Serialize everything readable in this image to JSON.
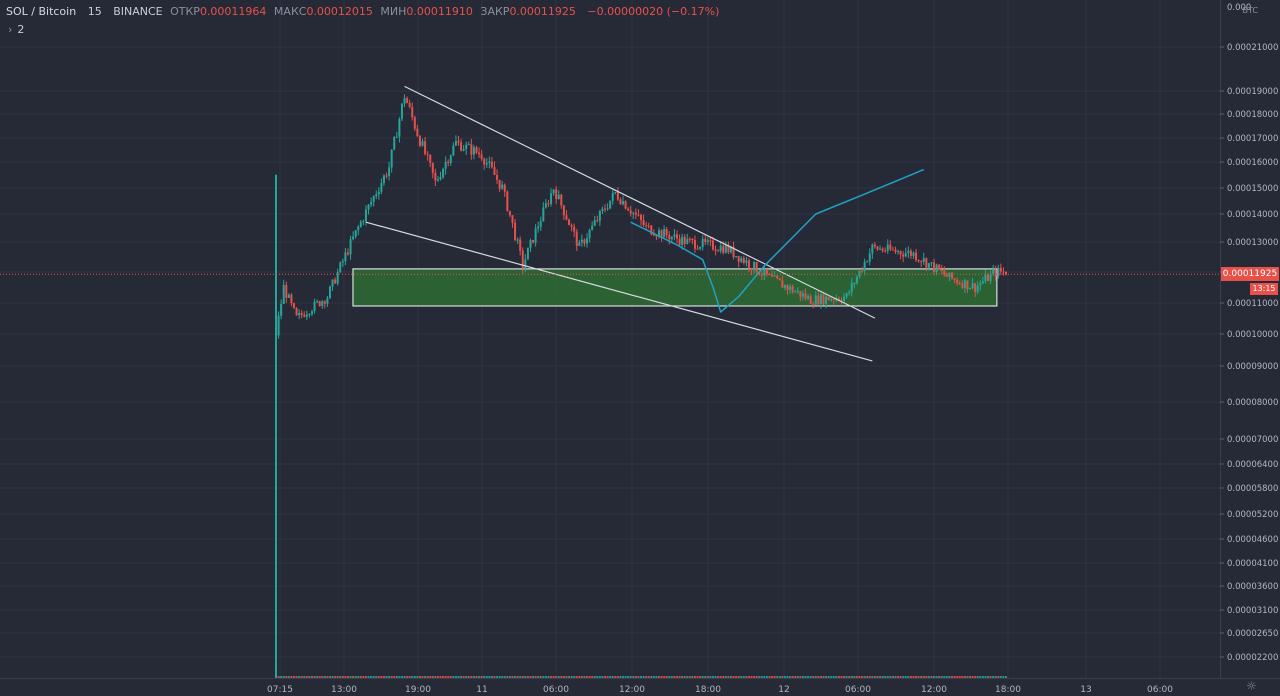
{
  "header": {
    "symbol": "SOL / Bitcoin",
    "interval": "15",
    "exchange": "BINANCE",
    "open_label": "ОТКР",
    "open_value": "0.00011964",
    "high_label": "МАКС",
    "high_value": "0.00012015",
    "low_label": "МИН",
    "low_value": "0.00011910",
    "close_label": "ЗАКР",
    "close_value": "0.00011925",
    "change_value": "−0.00000020 (−0.17%)",
    "indicators_count": "2"
  },
  "axis": {
    "unit_label": "BTC",
    "current_price_label": "0.00011925",
    "countdown_label": "13:15"
  },
  "colors": {
    "background": "#262a37",
    "up": "#26a69a",
    "down": "#e8504a",
    "zone_fill": "#2e6b32",
    "zone_border": "#d9dde0",
    "trendline": "#d6d9e0",
    "projection": "#1fa2c4",
    "grid": "#2f3443"
  },
  "chart_data": {
    "type": "candlestick",
    "title": "SOL / Bitcoin · 15 · BINANCE",
    "y_scale": "log",
    "y_ticks": [
      "0.00021000",
      "0.00019000",
      "0.00018000",
      "0.00017000",
      "0.00016000",
      "0.00015000",
      "0.00014000",
      "0.00013000",
      "0.00012000",
      "0.00011000",
      "0.00010000",
      "0.00009000",
      "0.00008000",
      "0.00007000",
      "0.00006400",
      "0.00005800",
      "0.00005200",
      "0.00004600",
      "0.00004100",
      "0.00003600",
      "0.00003100",
      "0.00002650",
      "0.00002200"
    ],
    "x_ticks": [
      "07:15",
      "13:00",
      "19:00",
      "11",
      "06:00",
      "12:00",
      "18:00",
      "12",
      "06:00",
      "12:00",
      "18:00",
      "13",
      "06:00"
    ],
    "current_price": 0.00011925,
    "price_path": [
      [
        0,
        0.0001
      ],
      [
        3,
        0.000115
      ],
      [
        8,
        0.000105
      ],
      [
        20,
        0.000112
      ],
      [
        32,
        0.000135
      ],
      [
        44,
        0.000158
      ],
      [
        50,
        0.000188
      ],
      [
        55,
        0.000172
      ],
      [
        62,
        0.000152
      ],
      [
        70,
        0.000168
      ],
      [
        80,
        0.000163
      ],
      [
        88,
        0.00015
      ],
      [
        96,
        0.000122
      ],
      [
        108,
        0.00015
      ],
      [
        118,
        0.000128
      ],
      [
        132,
        0.000148
      ],
      [
        144,
        0.000135
      ],
      [
        160,
        0.00013
      ],
      [
        175,
        0.000128
      ],
      [
        192,
        0.000118
      ],
      [
        208,
        0.000111
      ],
      [
        222,
        0.000112
      ],
      [
        232,
        0.000128
      ],
      [
        248,
        0.000126
      ],
      [
        262,
        0.000118
      ],
      [
        272,
        0.000115
      ],
      [
        280,
        0.00012
      ]
    ],
    "volume_profile": [
      [
        0,
        2.1e-06
      ],
      [
        1,
        3.2e-06
      ],
      [
        10,
        2.6e-06
      ],
      [
        28,
        3.2e-06
      ],
      [
        38,
        3.4e-06
      ],
      [
        48,
        5.2e-06
      ],
      [
        60,
        2.6e-06
      ],
      [
        80,
        2.4e-06
      ],
      [
        120,
        2.3e-06
      ],
      [
        200,
        2.2e-06
      ],
      [
        230,
        2.4e-06
      ],
      [
        280,
        2.1e-06
      ]
    ],
    "annotations": {
      "upper_trendline": {
        "from": [
          50,
          0.000192
        ],
        "to": [
          233,
          0.000105
        ]
      },
      "lower_trendline": {
        "from": [
          35,
          0.000137
        ],
        "to": [
          232,
          9.15e-05
        ]
      },
      "support_zone": {
        "start": 28,
        "end": 282,
        "top": 0.000121,
        "bottom": 0.000109
      },
      "projection_path": [
        [
          138,
          0.000137
        ],
        [
          156,
          0.000129
        ],
        [
          166,
          0.000124
        ],
        [
          170,
          0.000115
        ],
        [
          173,
          0.000107
        ],
        [
          180,
          0.000112
        ],
        [
          190,
          0.000122
        ],
        [
          210,
          0.00014
        ],
        [
          230,
          0.000148
        ],
        [
          252,
          0.000157
        ]
      ]
    }
  }
}
